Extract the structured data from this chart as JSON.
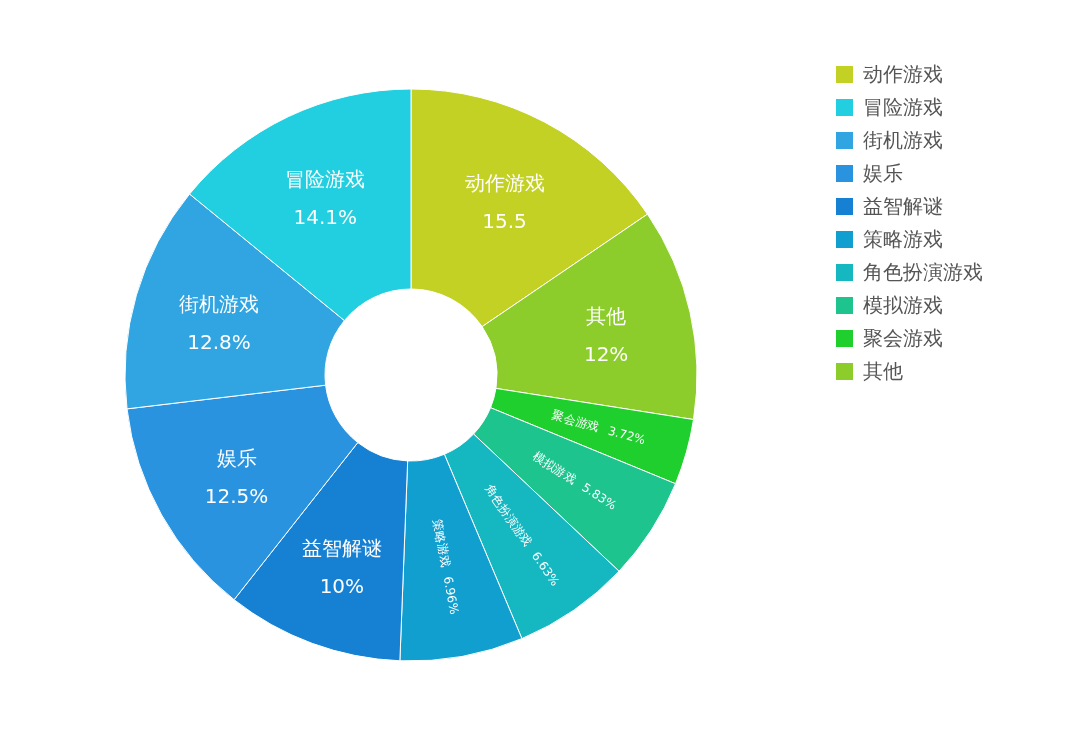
{
  "chart_data": {
    "type": "donut",
    "categories": [
      "动作游戏",
      "其他",
      "聚会游戏",
      "模拟游戏",
      "角色扮演游戏",
      "策略游戏",
      "益智解谜",
      "娱乐",
      "街机游戏",
      "冒险游戏"
    ],
    "values": [
      15.5,
      12,
      3.72,
      5.83,
      6.63,
      6.96,
      10,
      12.5,
      12.8,
      14.1
    ],
    "value_labels": [
      "15.5",
      "12%",
      "3.72%",
      "5.83%",
      "6.63%",
      "6.96%",
      "10%",
      "12.5%",
      "12.8%",
      "14.1%"
    ],
    "colors": [
      "#c3d024",
      "#8ccd2c",
      "#1ecf2e",
      "#1dc48e",
      "#15b7c1",
      "#119fd0",
      "#1680d3",
      "#2a93e0",
      "#31a5e1",
      "#22cfe0"
    ],
    "legend": "top right"
  }
}
